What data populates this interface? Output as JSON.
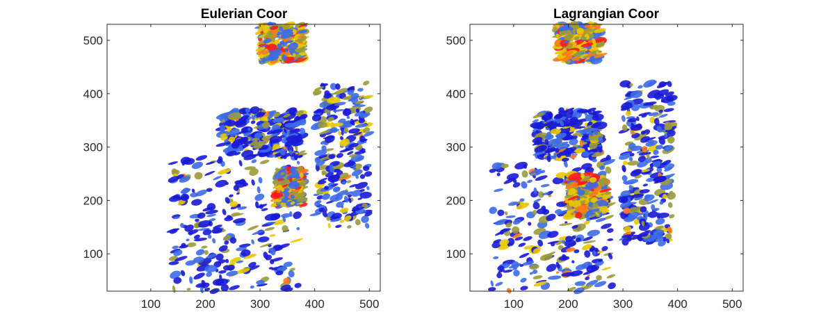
{
  "chart_data": [
    {
      "type": "heatmap",
      "title": "Eulerian Coor",
      "xlabel": "",
      "ylabel": "",
      "xlim": [
        20,
        520
      ],
      "ylim": [
        30,
        530
      ],
      "xticks": [
        100,
        200,
        300,
        400,
        500
      ],
      "yticks": [
        100,
        200,
        300,
        400,
        500
      ],
      "colormap": [
        "#1a1ad6",
        "#3d6ae8",
        "#9a9a3a",
        "#e8c800",
        "#ff7a1a",
        "#ff1a1a"
      ],
      "description_regions": [
        {
          "x": [
            300,
            380
          ],
          "y": [
            460,
            530
          ],
          "level": "high"
        },
        {
          "x": [
            400,
            500
          ],
          "y": [
            150,
            420
          ],
          "level": "medium"
        },
        {
          "x": [
            230,
            380
          ],
          "y": [
            280,
            370
          ],
          "level": "medium"
        },
        {
          "x": [
            140,
            370
          ],
          "y": [
            30,
            280
          ],
          "level": "medium"
        },
        {
          "x": [
            330,
            380
          ],
          "y": [
            190,
            260
          ],
          "level": "high"
        }
      ]
    },
    {
      "type": "heatmap",
      "title": "Lagrangian Coor",
      "xlabel": "",
      "ylabel": "",
      "xlim": [
        20,
        520
      ],
      "ylim": [
        30,
        530
      ],
      "xticks": [
        100,
        200,
        300,
        400,
        500
      ],
      "yticks": [
        100,
        200,
        300,
        400,
        500
      ],
      "colormap": [
        "#1a1ad6",
        "#3d6ae8",
        "#9a9a3a",
        "#e8c800",
        "#ff7a1a",
        "#ff1a1a"
      ],
      "description_regions": [
        {
          "x": [
            180,
            260
          ],
          "y": [
            460,
            530
          ],
          "level": "high"
        },
        {
          "x": [
            300,
            390
          ],
          "y": [
            120,
            420
          ],
          "level": "medium"
        },
        {
          "x": [
            140,
            260
          ],
          "y": [
            280,
            370
          ],
          "level": "medium"
        },
        {
          "x": [
            60,
            280
          ],
          "y": [
            30,
            280
          ],
          "level": "medium"
        },
        {
          "x": [
            200,
            270
          ],
          "y": [
            170,
            250
          ],
          "level": "high"
        }
      ]
    }
  ]
}
